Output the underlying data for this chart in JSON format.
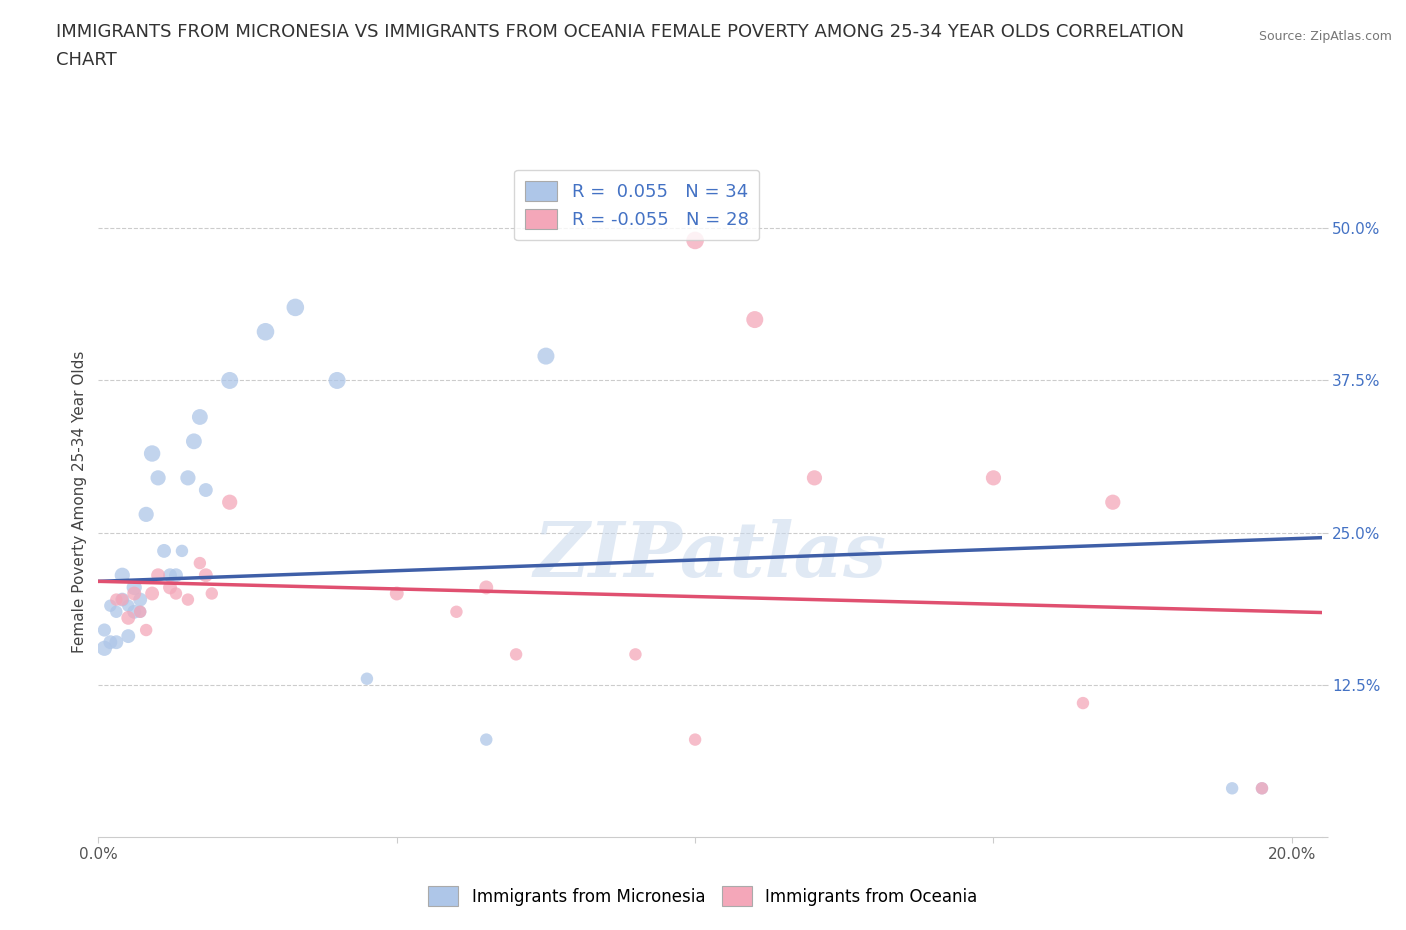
{
  "title_line1": "IMMIGRANTS FROM MICRONESIA VS IMMIGRANTS FROM OCEANIA FEMALE POVERTY AMONG 25-34 YEAR OLDS CORRELATION",
  "title_line2": "CHART",
  "source": "Source: ZipAtlas.com",
  "ylabel": "Female Poverty Among 25-34 Year Olds",
  "xlabel": "",
  "xlim": [
    0.0,
    0.205
  ],
  "ylim": [
    0.0,
    0.55
  ],
  "yticks": [
    0.0,
    0.125,
    0.25,
    0.375,
    0.5
  ],
  "ytick_labels": [
    "",
    "12.5%",
    "25.0%",
    "37.5%",
    "50.0%"
  ],
  "xticks": [
    0.0,
    0.05,
    0.1,
    0.15,
    0.2
  ],
  "xtick_labels": [
    "0.0%",
    "",
    "",
    "",
    "20.0%"
  ],
  "series1_label": "Immigrants from Micronesia",
  "series2_label": "Immigrants from Oceania",
  "series1_color": "#aec6e8",
  "series2_color": "#f4a7b9",
  "series1_line_color": "#3f5fa8",
  "series2_line_color": "#e05070",
  "watermark_text": "ZIPatlas",
  "background_color": "#ffffff",
  "series1_x": [
    0.001,
    0.001,
    0.002,
    0.002,
    0.003,
    0.003,
    0.004,
    0.004,
    0.005,
    0.005,
    0.006,
    0.006,
    0.007,
    0.007,
    0.008,
    0.009,
    0.01,
    0.011,
    0.012,
    0.013,
    0.014,
    0.015,
    0.016,
    0.017,
    0.018,
    0.022,
    0.028,
    0.033,
    0.04,
    0.045,
    0.065,
    0.075,
    0.19,
    0.195
  ],
  "series1_y": [
    0.155,
    0.17,
    0.16,
    0.19,
    0.16,
    0.185,
    0.195,
    0.215,
    0.165,
    0.19,
    0.205,
    0.185,
    0.185,
    0.195,
    0.265,
    0.315,
    0.295,
    0.235,
    0.215,
    0.215,
    0.235,
    0.295,
    0.325,
    0.345,
    0.285,
    0.375,
    0.415,
    0.435,
    0.375,
    0.13,
    0.08,
    0.395,
    0.04,
    0.04
  ],
  "series2_x": [
    0.003,
    0.004,
    0.005,
    0.006,
    0.007,
    0.008,
    0.009,
    0.01,
    0.012,
    0.013,
    0.015,
    0.017,
    0.018,
    0.019,
    0.022,
    0.05,
    0.06,
    0.065,
    0.07,
    0.09,
    0.1,
    0.1,
    0.11,
    0.12,
    0.15,
    0.165,
    0.17,
    0.195
  ],
  "series2_y": [
    0.195,
    0.195,
    0.18,
    0.2,
    0.185,
    0.17,
    0.2,
    0.215,
    0.205,
    0.2,
    0.195,
    0.225,
    0.215,
    0.2,
    0.275,
    0.2,
    0.185,
    0.205,
    0.15,
    0.15,
    0.08,
    0.49,
    0.425,
    0.295,
    0.295,
    0.11,
    0.275,
    0.04
  ],
  "series1_sizes": [
    120,
    90,
    100,
    80,
    100,
    80,
    100,
    120,
    100,
    80,
    120,
    100,
    80,
    100,
    120,
    140,
    120,
    100,
    100,
    100,
    80,
    120,
    130,
    130,
    100,
    150,
    160,
    160,
    150,
    80,
    80,
    150,
    80,
    80
  ],
  "series2_sizes": [
    80,
    80,
    100,
    100,
    80,
    80,
    100,
    100,
    100,
    80,
    80,
    80,
    100,
    80,
    120,
    100,
    80,
    100,
    80,
    80,
    80,
    160,
    150,
    120,
    120,
    80,
    120,
    80
  ],
  "series1_R": 0.055,
  "series1_N": 34,
  "series2_R": -0.055,
  "series2_N": 28,
  "grid_color": "#cccccc",
  "title_fontsize": 13,
  "axis_label_fontsize": 11,
  "tick_fontsize": 11
}
